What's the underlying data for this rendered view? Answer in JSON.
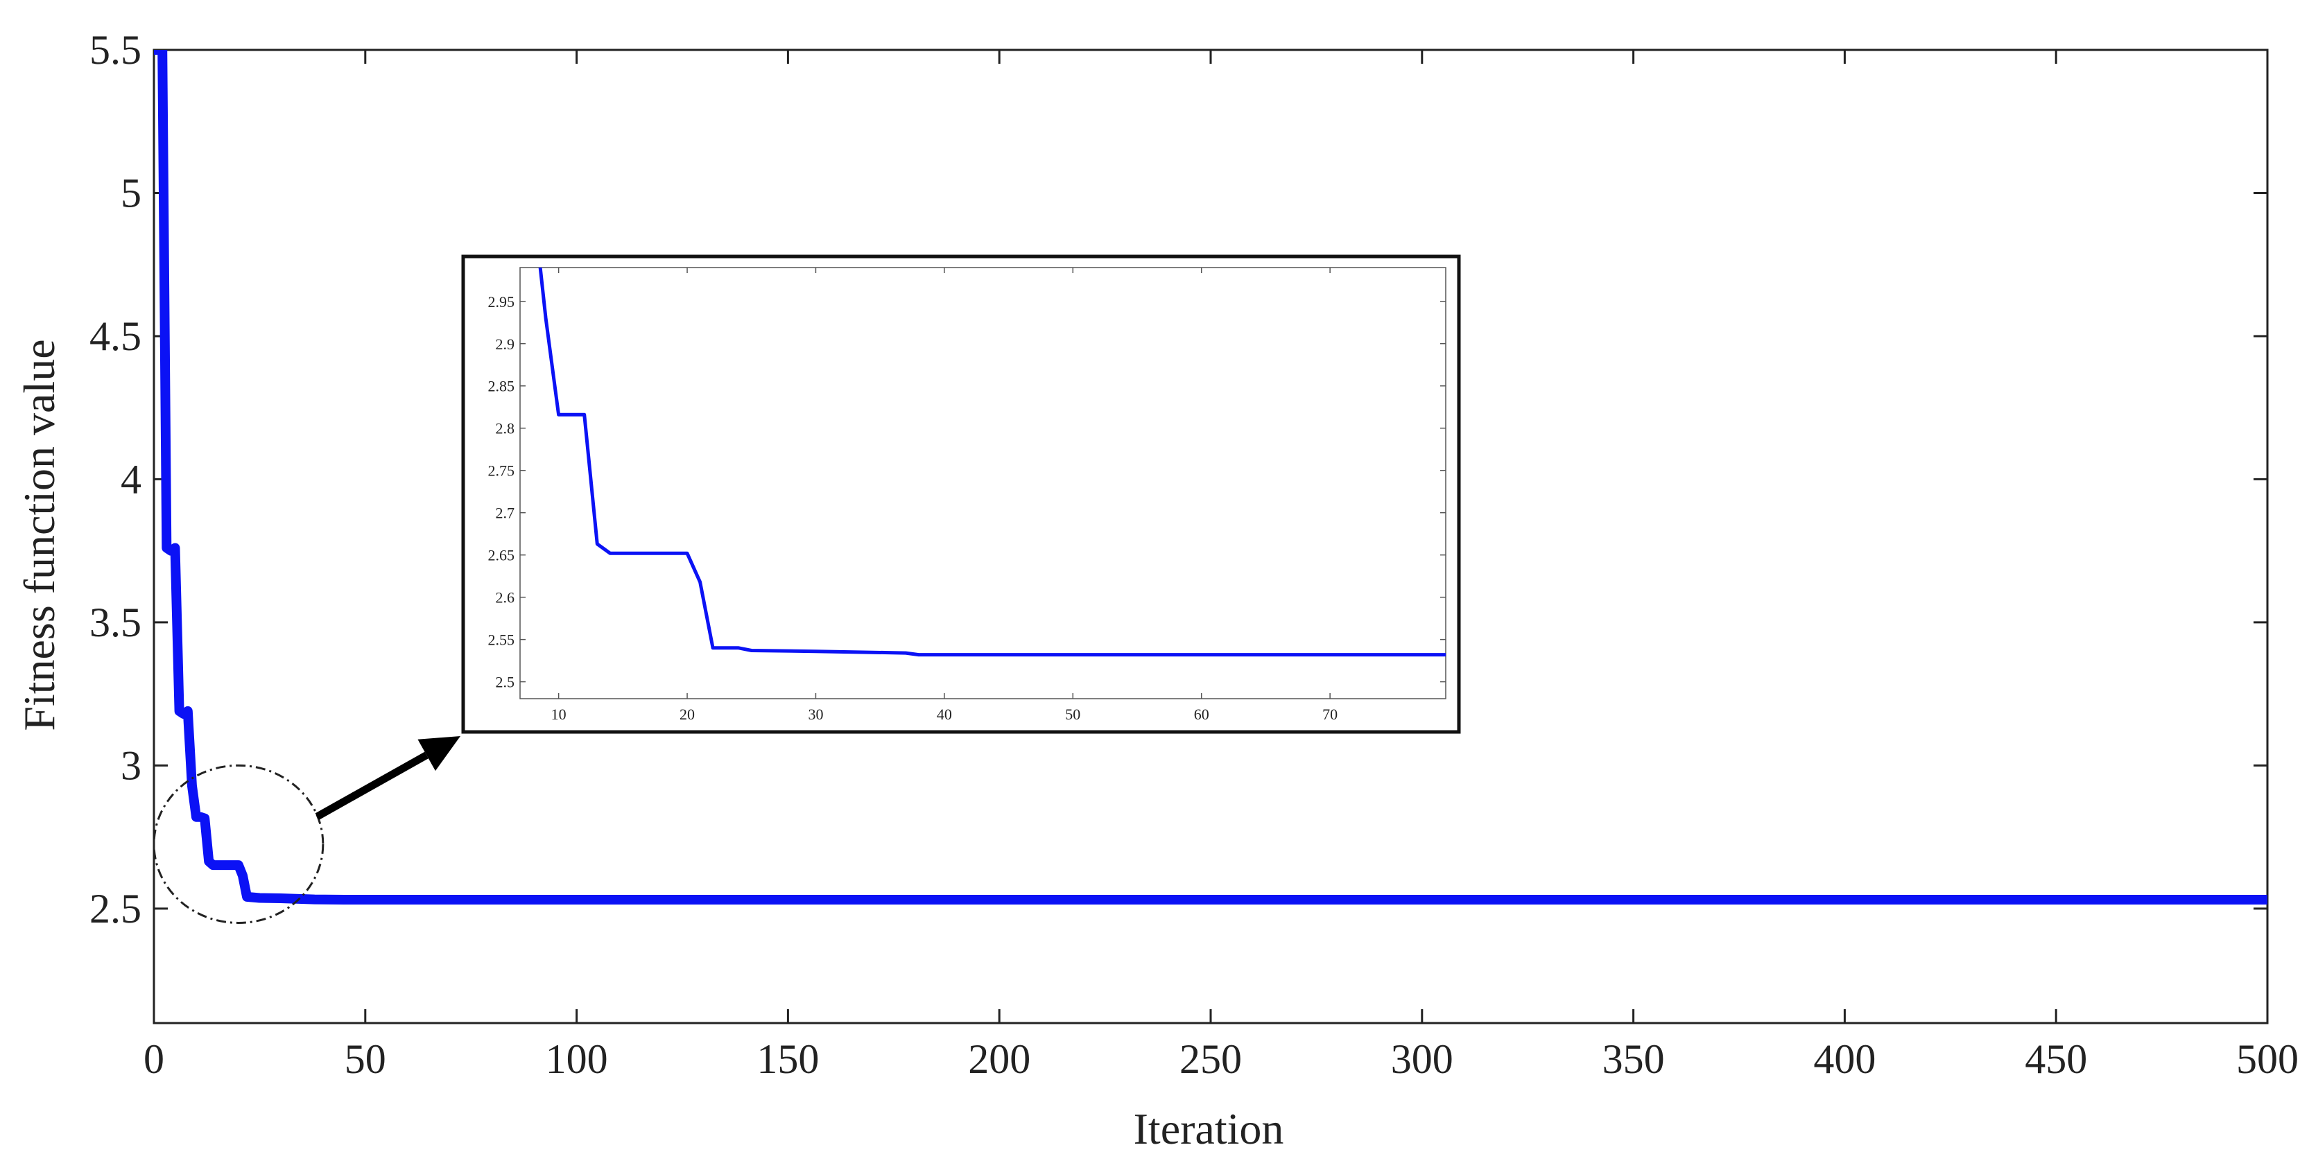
{
  "chart_data": {
    "type": "line",
    "title": "",
    "xlabel": "Iteration",
    "ylabel": "Fitness function value",
    "xlim": [
      0,
      500
    ],
    "ylim": [
      2.1,
      5.5
    ],
    "xticks": [
      0,
      50,
      100,
      150,
      200,
      250,
      300,
      350,
      400,
      450,
      500
    ],
    "yticks": [
      2.5,
      3,
      3.5,
      4,
      4.5,
      5,
      5.5
    ],
    "grid": false,
    "legend": "none",
    "series": [
      {
        "color": "#0b12f5",
        "x": [
          0,
          2,
          3,
          4,
          5,
          6,
          7,
          8,
          9,
          10,
          11,
          12,
          13,
          14,
          20,
          21,
          22,
          25,
          30,
          38,
          45,
          60,
          100,
          200,
          300,
          400,
          500
        ],
        "y": [
          5.5,
          5.5,
          3.76,
          3.75,
          3.76,
          3.19,
          3.18,
          3.19,
          2.93,
          2.82,
          2.82,
          2.815,
          2.665,
          2.652,
          2.652,
          2.615,
          2.541,
          2.537,
          2.536,
          2.532,
          2.531,
          2.531,
          2.531,
          2.531,
          2.531,
          2.531,
          2.531
        ]
      }
    ],
    "annotations": {
      "zoom_region": {
        "x": [
          0,
          40
        ],
        "y": [
          2.45,
          3.0
        ]
      }
    },
    "inset": {
      "type": "line",
      "xlim": [
        7,
        79
      ],
      "ylim": [
        2.48,
        2.99
      ],
      "xticks": [
        10,
        20,
        30,
        40,
        50,
        60,
        70
      ],
      "yticks": [
        2.5,
        2.55,
        2.6,
        2.65,
        2.7,
        2.75,
        2.8,
        2.85,
        2.9,
        2.95
      ],
      "ytick_labels": [
        "2.5",
        "2.55",
        "2.6",
        "2.65",
        "2.7",
        "2.75",
        "2.8",
        "2.85",
        "2.9",
        "2.95"
      ],
      "series": [
        {
          "color": "#0b12f5",
          "x": [
            8.5,
            9,
            10,
            11,
            12,
            13,
            14,
            20,
            21,
            22,
            23,
            24,
            25,
            30,
            37,
            38,
            50,
            79
          ],
          "y": [
            3.0,
            2.93,
            2.816,
            2.816,
            2.816,
            2.663,
            2.652,
            2.652,
            2.618,
            2.54,
            2.54,
            2.54,
            2.537,
            2.536,
            2.534,
            2.532,
            2.532,
            2.532
          ]
        }
      ]
    }
  }
}
